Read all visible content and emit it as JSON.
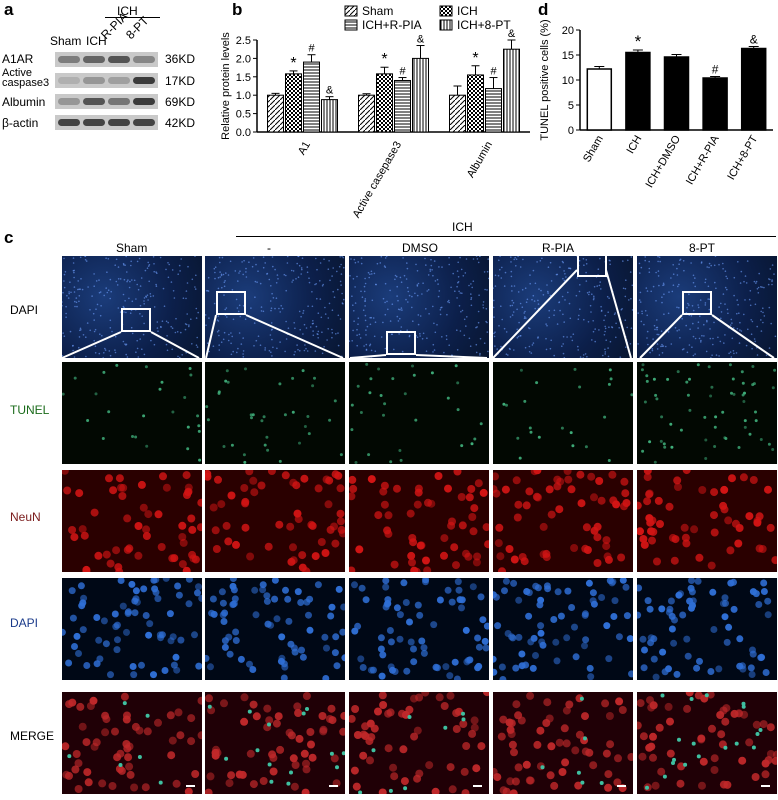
{
  "panels": {
    "a": "a",
    "b": "b",
    "c": "c",
    "d": "d"
  },
  "western": {
    "ich_header": "ICH",
    "lanes": [
      "Sham",
      "ICH",
      "R-PIA",
      "8-PT"
    ],
    "rows": [
      {
        "name": "A1AR",
        "size": "36KD"
      },
      {
        "name": "Active caspase3",
        "size": "17KD"
      },
      {
        "name": "Albumin",
        "size": "69KD"
      },
      {
        "name": "β-actin",
        "size": "42KD"
      }
    ]
  },
  "chart_data": [
    {
      "type": "bar",
      "panel": "b",
      "ylabel": "Relative protein levels",
      "ylim": [
        0,
        2.5
      ],
      "yticks": [
        "0.0",
        "0.5",
        "1.0",
        "1.5",
        "2.0",
        "2.5"
      ],
      "categories": [
        "A1",
        "Active casepase3",
        "Albumin"
      ],
      "series": [
        {
          "name": "Sham",
          "values": [
            1.0,
            1.0,
            1.0
          ],
          "errors": [
            0.05,
            0.04,
            0.25
          ],
          "marks": [
            "",
            "",
            ""
          ]
        },
        {
          "name": "ICH",
          "values": [
            1.58,
            1.58,
            1.55
          ],
          "errors": [
            0.08,
            0.18,
            0.25
          ],
          "marks": [
            "*",
            "*",
            "*"
          ]
        },
        {
          "name": "ICH+R-PIA",
          "values": [
            1.9,
            1.4,
            1.18
          ],
          "errors": [
            0.2,
            0.08,
            0.3
          ],
          "marks": [
            "#",
            "#",
            "#"
          ]
        },
        {
          "name": "ICH+8-PT",
          "values": [
            0.88,
            2.0,
            2.25
          ],
          "errors": [
            0.08,
            0.35,
            0.25
          ],
          "marks": [
            "&",
            "&",
            "&"
          ]
        }
      ]
    },
    {
      "type": "bar",
      "panel": "d",
      "ylabel": "TUNEL positive cells (%)",
      "ylim": [
        0,
        20
      ],
      "yticks": [
        "0",
        "5",
        "10",
        "15",
        "20"
      ],
      "categories": [
        "Sham",
        "ICH",
        "ICH+DMSO",
        "ICH+R-PIA",
        "ICH+8-PT"
      ],
      "values": [
        12.2,
        15.5,
        14.6,
        10.4,
        16.3
      ],
      "errors": [
        0.5,
        0.5,
        0.5,
        0.3,
        0.4
      ],
      "marks": [
        "",
        "*",
        "",
        "#",
        "&"
      ]
    }
  ],
  "microscopy": {
    "ich_header": "ICH",
    "columns": [
      "Sham",
      "-",
      "DMSO",
      "R-PIA",
      "8-PT"
    ],
    "rows": [
      {
        "label": "DAPI",
        "color": "#000000"
      },
      {
        "label": "TUNEL",
        "color": "#1a6b1a"
      },
      {
        "label": "NeuN",
        "color": "#7a1a1a"
      },
      {
        "label": "DAPI",
        "color": "#1a3a8a"
      },
      {
        "label": "MERGE",
        "color": "#000000"
      }
    ]
  }
}
